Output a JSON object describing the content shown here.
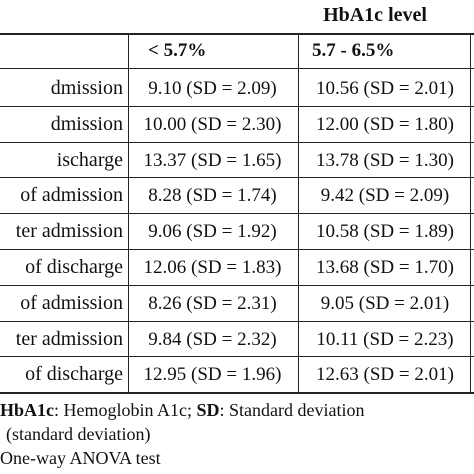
{
  "table": {
    "group_header": "HbA1c level",
    "columns": [
      "< 5.7%",
      "5.7 - 6.5%"
    ],
    "rows": [
      {
        "label": "dmission",
        "c1": "9.10 (SD = 2.09)",
        "c2": "10.56 (SD = 2.01)"
      },
      {
        "label": "dmission",
        "c1": "10.00 (SD = 2.30)",
        "c2": "12.00 (SD = 1.80)"
      },
      {
        "label": "ischarge",
        "c1": "13.37 (SD = 1.65)",
        "c2": "13.78 (SD = 1.30)"
      },
      {
        "label": "of admission",
        "c1": "8.28 (SD = 1.74)",
        "c2": "9.42 (SD = 2.09)"
      },
      {
        "label": "ter admission",
        "c1": "9.06 (SD = 1.92)",
        "c2": "10.58 (SD = 1.89)"
      },
      {
        "label": "of discharge",
        "c1": "12.06 (SD = 1.83)",
        "c2": "13.68 (SD = 1.70)"
      },
      {
        "label": "of admission",
        "c1": "8.26 (SD = 2.31)",
        "c2": "9.05 (SD = 2.01)"
      },
      {
        "label": "ter admission",
        "c1": "9.84 (SD = 2.32)",
        "c2": "10.11 (SD = 2.23)"
      },
      {
        "label": "of discharge",
        "c1": "12.95 (SD = 1.96)",
        "c2": "12.63 (SD = 2.01)"
      }
    ]
  },
  "footnotes": {
    "line1_abbr1": "HbA1c",
    "line1_text1": ": Hemoglobin A1c; ",
    "line1_abbr2": "SD",
    "line1_text2": ": Standard deviation",
    "line2": "(standard deviation)",
    "line3": "One-way ANOVA test"
  }
}
